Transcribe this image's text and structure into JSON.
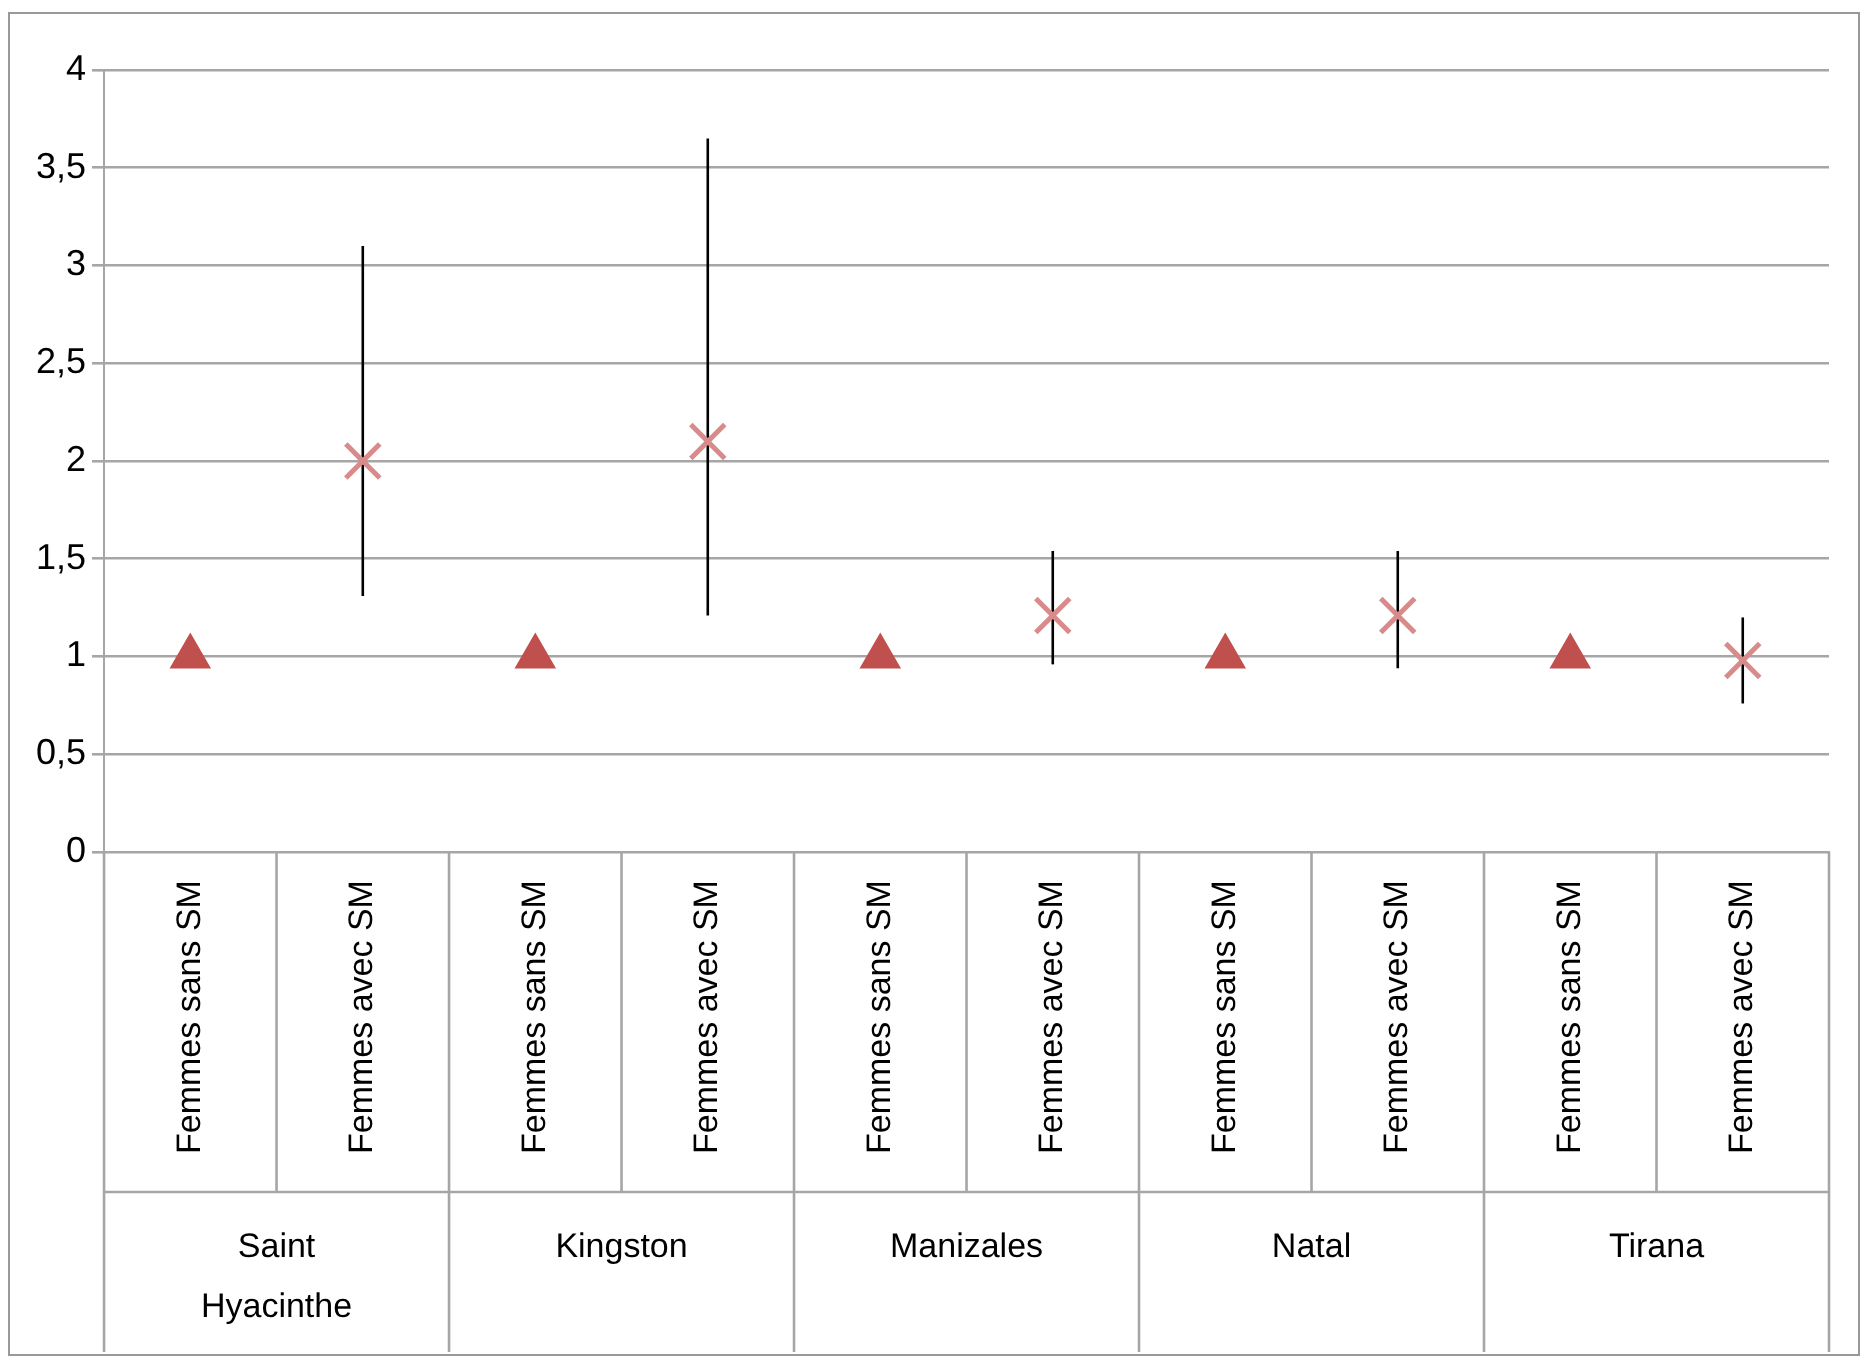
{
  "chart_data": {
    "type": "scatter",
    "categories": [
      "Femmes sans SM",
      "Femmes avec SM",
      "Femmes sans SM",
      "Femmes avec SM",
      "Femmes sans SM",
      "Femmes avec SM",
      "Femmes sans SM",
      "Femmes avec SM",
      "Femmes sans SM",
      "Femmes avec SM"
    ],
    "series": [
      {
        "color": "#c0504d",
        "marker": "triangle",
        "values": [
          1,
          null,
          1,
          null,
          1,
          null,
          1,
          null,
          1,
          null
        ]
      },
      {
        "color": "#d98a8a",
        "marker": "cross",
        "values": [
          null,
          2.0,
          null,
          2.1,
          null,
          1.21,
          null,
          1.21,
          null,
          0.98
        ],
        "errors": [
          null,
          [
            1.31,
            3.1
          ],
          null,
          [
            1.21,
            3.65
          ],
          null,
          [
            0.96,
            1.54
          ],
          null,
          [
            0.94,
            1.54
          ],
          null,
          [
            0.76,
            1.2
          ]
        ]
      }
    ],
    "annotations": [
      "Saint Hyacinthe",
      "Kingston",
      "Manizales",
      "Natal",
      "Tirana"
    ],
    "ylim": [
      0,
      4
    ],
    "yticks": [
      0,
      {
        "value": 0.5,
        "label": "0,5"
      },
      1,
      {
        "value": 1.5,
        "label": "1,5"
      },
      2,
      {
        "value": 2.5,
        "label": "2,5"
      },
      3,
      {
        "value": 3.5,
        "label": "3,5"
      },
      4
    ],
    "grid": "y",
    "legend": false
  }
}
